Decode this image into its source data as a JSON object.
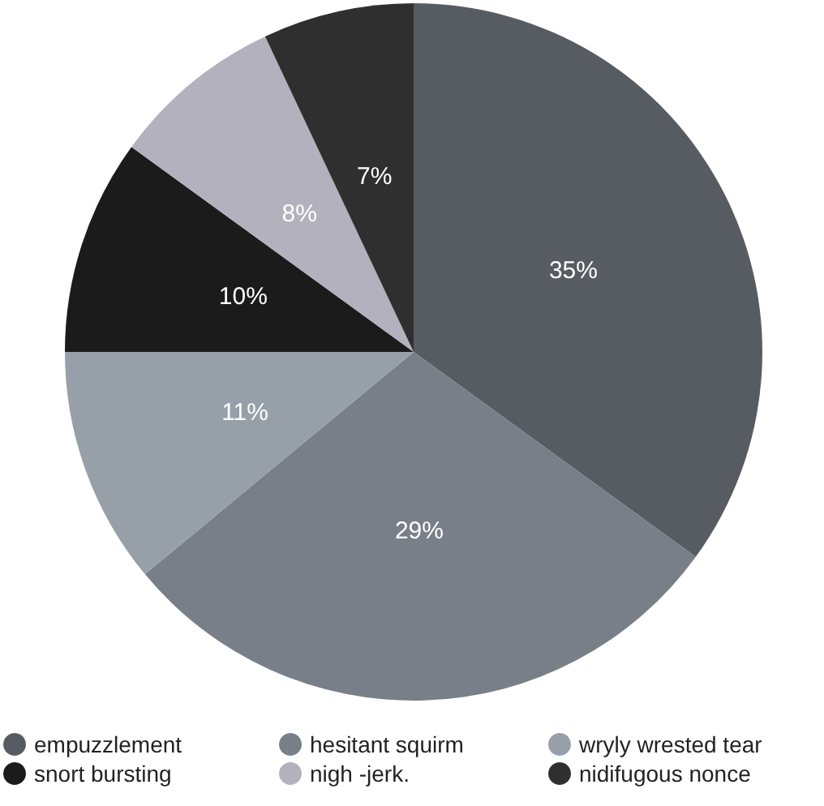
{
  "chart_data": {
    "type": "pie",
    "categories": [
      "empuzzlement",
      "hesitant squirm",
      "wryly wrested tear",
      "snort bursting",
      "nigh -jerk.",
      "nidifugous nonce"
    ],
    "values": [
      35,
      29,
      11,
      10,
      8,
      7
    ],
    "colors": [
      "#575b62",
      "#797f88",
      "#979fa9",
      "#1b1b1b",
      "#b2b1bd",
      "#2f2f2f"
    ],
    "value_labels": [
      "35%",
      "29%",
      "11%",
      "10%",
      "8%",
      "7%"
    ],
    "legend": "bottom"
  }
}
